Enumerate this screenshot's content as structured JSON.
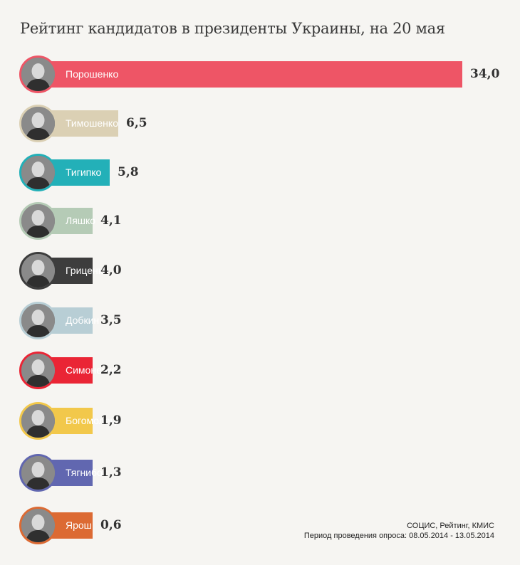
{
  "chart_data": {
    "type": "bar",
    "orientation": "horizontal",
    "title": "Рейтинг кандидатов в президенты Украины, на 20 мая",
    "categories": [
      "Порошенко",
      "Тимошенко",
      "Тигипко",
      "Ляшко",
      "Гриценко",
      "Добкин",
      "Симоненко",
      "Богомолец",
      "Тягнибок",
      "Ярош"
    ],
    "values": [
      34.0,
      6.5,
      5.8,
      4.1,
      4.0,
      3.5,
      2.2,
      1.9,
      1.3,
      0.6
    ],
    "value_labels": [
      "34,0",
      "6,5",
      "5,8",
      "4,1",
      "4,0",
      "3,5",
      "2,2",
      "1,9",
      "1,3",
      "0,6"
    ],
    "colors": [
      "#ee5566",
      "#dbd0b4",
      "#23b0b8",
      "#b5cbb6",
      "#3d3d3d",
      "#b8ced5",
      "#ea2535",
      "#f2c84b",
      "#6167b0",
      "#dc6a33"
    ],
    "avatar_icons": [
      "portrait-icon",
      "portrait-icon",
      "portrait-icon",
      "portrait-icon",
      "portrait-icon",
      "portrait-icon",
      "portrait-icon",
      "portrait-icon",
      "portrait-icon",
      "portrait-icon"
    ],
    "xlim": [
      0,
      34.0
    ],
    "grid": false,
    "legend": "none"
  },
  "footer": {
    "source_line": "СОЦИС, Рейтинг, КМИС",
    "period_line": "Период проведения опроса: 08.05.2014 - 13.05.2014"
  },
  "colors": {
    "background": "#f6f5f2"
  }
}
